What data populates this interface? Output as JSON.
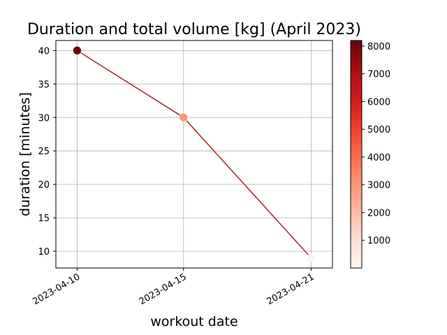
{
  "chart_data": {
    "type": "scatter",
    "title": "Duration and total volume [kg] (April 2023)",
    "xlabel": "workout date",
    "ylabel": "duration [minutes]",
    "x": [
      "2023-04-10",
      "2023-04-15",
      "2023-04-21"
    ],
    "y": [
      40,
      30,
      9
    ],
    "color_values": [
      8200,
      3000,
      100
    ],
    "xlim": [
      "2023-04-09",
      "2023-04-22"
    ],
    "ylim": [
      7.5,
      41.5
    ],
    "x_ticks": [
      "2023-04-10",
      "2023-04-15",
      "2023-04-21"
    ],
    "y_ticks": [
      10,
      15,
      20,
      25,
      30,
      35,
      40
    ],
    "line_connects_points": true,
    "line_color": "#a83232",
    "grid": true,
    "colorbar": {
      "colormap": "Reds",
      "range": [
        0,
        8200
      ],
      "ticks": [
        1000,
        2000,
        3000,
        4000,
        5000,
        6000,
        7000,
        8000
      ]
    }
  }
}
